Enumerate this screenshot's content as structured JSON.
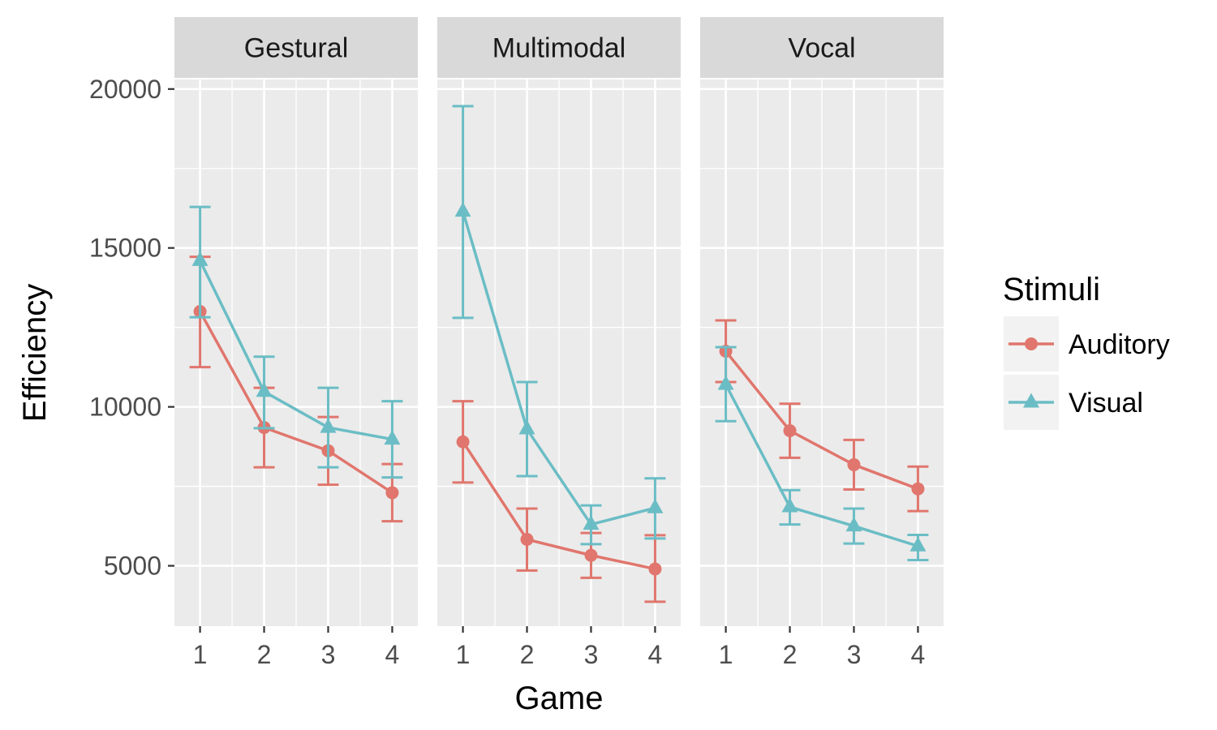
{
  "chart_data": {
    "type": "line",
    "xlabel": "Game",
    "ylabel": "Efficiency",
    "x": [
      1,
      2,
      3,
      4
    ],
    "ylim": [
      3100,
      20300
    ],
    "yticks": [
      5000,
      10000,
      15000,
      20000
    ],
    "grid": true,
    "legend": {
      "title": "Stimuli",
      "placement": "right"
    },
    "colors": {
      "Auditory": "#E0766D",
      "Visual": "#6BBDC5"
    },
    "markers": {
      "Auditory": "circle",
      "Visual": "triangle"
    },
    "panels": [
      {
        "label": "Gestural",
        "series": [
          {
            "name": "Auditory",
            "values": [
              13000,
              9350,
              8620,
              7300
            ],
            "lower": [
              11250,
              8100,
              7550,
              6400
            ],
            "upper": [
              14720,
              10600,
              9680,
              8200
            ]
          },
          {
            "name": "Visual",
            "values": [
              14600,
              10480,
              9350,
              8980
            ],
            "lower": [
              12820,
              9330,
              8100,
              7780
            ],
            "upper": [
              16290,
              11580,
              10600,
              10180
            ]
          }
        ]
      },
      {
        "label": "Multimodal",
        "series": [
          {
            "name": "Auditory",
            "values": [
              8900,
              5830,
              5330,
              4900
            ],
            "lower": [
              7620,
              4850,
              4620,
              3870
            ],
            "upper": [
              10180,
              6800,
              6030,
              5960
            ]
          },
          {
            "name": "Visual",
            "values": [
              16150,
              9300,
              6300,
              6820
            ],
            "lower": [
              12800,
              7820,
              5680,
              5860
            ],
            "upper": [
              19460,
              10780,
              6900,
              7750
            ]
          }
        ]
      },
      {
        "label": "Vocal",
        "series": [
          {
            "name": "Auditory",
            "values": [
              11750,
              9250,
              8180,
              7420
            ],
            "lower": [
              10780,
              8400,
              7400,
              6720
            ],
            "upper": [
              12720,
              10100,
              8960,
              8120
            ]
          },
          {
            "name": "Visual",
            "values": [
              10700,
              6850,
              6250,
              5620
            ],
            "lower": [
              9550,
              6300,
              5700,
              5180
            ],
            "upper": [
              11880,
              7380,
              6800,
              5970
            ]
          }
        ]
      }
    ]
  }
}
